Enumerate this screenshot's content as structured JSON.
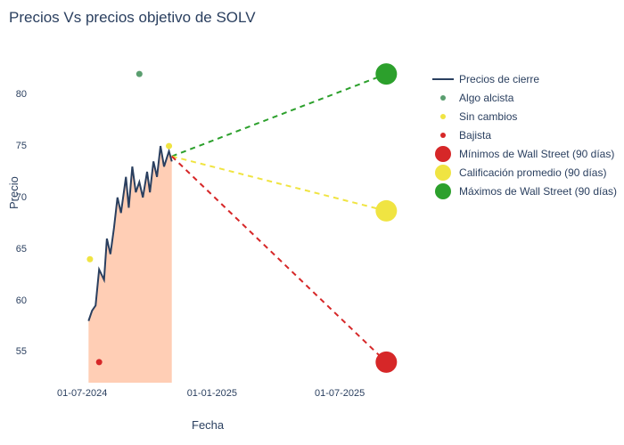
{
  "title": "Precios Vs precios objetivo de SOLV",
  "y_axis_label": "Precio",
  "x_axis_label": "Fecha",
  "legend": {
    "close": "Precios de cierre",
    "bullish": "Algo alcista",
    "nochange": "Sin cambios",
    "bearish": "Bajista",
    "lows": "Mínimos de Wall Street (90 días)",
    "avg": "Calificación promedio (90 días)",
    "highs": "Máximos de Wall Street (90 días)"
  },
  "x_ticks": [
    "01-07-2024",
    "01-01-2025",
    "01-07-2025"
  ],
  "y_ticks": [
    "55",
    "60",
    "65",
    "70",
    "75",
    "80"
  ],
  "chart": {
    "type": "line",
    "background_color": "#ffffff",
    "grid_color": "#ffffff",
    "xlim_dates": [
      "2024-05-15",
      "2025-10-15"
    ],
    "ylim": [
      52,
      84
    ],
    "close_line": {
      "color": "#2a3f5f",
      "width": 2,
      "fill_color": "rgba(255,165,120,0.55)",
      "points": [
        [
          "2024-07-10",
          58.0
        ],
        [
          "2024-07-15",
          59.0
        ],
        [
          "2024-07-20",
          59.5
        ],
        [
          "2024-07-25",
          63.0
        ],
        [
          "2024-08-01",
          62.0
        ],
        [
          "2024-08-05",
          66.0
        ],
        [
          "2024-08-10",
          64.5
        ],
        [
          "2024-08-15",
          67.0
        ],
        [
          "2024-08-20",
          70.0
        ],
        [
          "2024-08-25",
          68.5
        ],
        [
          "2024-09-01",
          72.0
        ],
        [
          "2024-09-05",
          69.0
        ],
        [
          "2024-09-10",
          73.0
        ],
        [
          "2024-09-15",
          70.5
        ],
        [
          "2024-09-20",
          71.5
        ],
        [
          "2024-09-25",
          70.0
        ],
        [
          "2024-10-01",
          72.5
        ],
        [
          "2024-10-05",
          70.5
        ],
        [
          "2024-10-10",
          73.5
        ],
        [
          "2024-10-15",
          72.0
        ],
        [
          "2024-10-20",
          75.0
        ],
        [
          "2024-10-25",
          73.0
        ],
        [
          "2024-11-01",
          74.5
        ],
        [
          "2024-11-05",
          73.5
        ]
      ]
    },
    "small_dots": [
      {
        "date": "2024-07-12",
        "value": 64.0,
        "color": "#f0e442",
        "name": "nochange-dot"
      },
      {
        "date": "2024-07-25",
        "value": 54.0,
        "color": "#d62728",
        "name": "bearish-dot"
      },
      {
        "date": "2024-09-20",
        "value": 82.0,
        "color": "#5a9e6f",
        "name": "bullish-dot"
      },
      {
        "date": "2024-11-01",
        "value": 75.0,
        "color": "#f0e442",
        "name": "nochange-dot"
      }
    ],
    "projections": [
      {
        "name": "highs-projection",
        "color": "#2ca02c",
        "dash": "6,5",
        "from": [
          "2024-11-05",
          74.0
        ],
        "to": [
          "2025-09-05",
          82.0
        ],
        "marker_color": "#2ca02c",
        "marker_r": 12
      },
      {
        "name": "avg-projection",
        "color": "#f0e442",
        "dash": "6,5",
        "from": [
          "2024-11-05",
          74.0
        ],
        "to": [
          "2025-09-05",
          68.7
        ],
        "marker_color": "#f0e442",
        "marker_r": 12
      },
      {
        "name": "lows-projection",
        "color": "#d62728",
        "dash": "6,5",
        "from": [
          "2024-11-05",
          74.0
        ],
        "to": [
          "2025-09-05",
          54.0
        ],
        "marker_color": "#d62728",
        "marker_r": 12
      }
    ],
    "legend_colors": {
      "close": "#2a3f5f",
      "bullish": "#5a9e6f",
      "nochange": "#f0e442",
      "bearish": "#d62728",
      "lows": "#d62728",
      "avg": "#f0e442",
      "highs": "#2ca02c"
    }
  }
}
